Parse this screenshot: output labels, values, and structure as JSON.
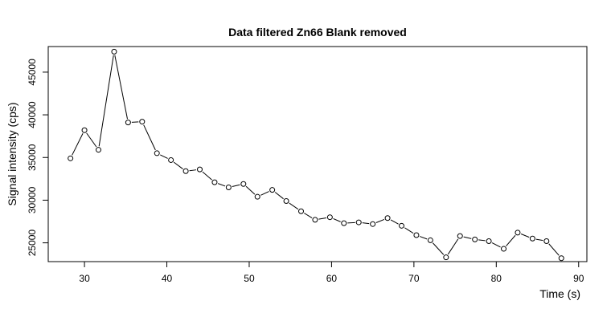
{
  "chart_data": {
    "type": "line",
    "title": "Data filtered Zn66 Blank removed",
    "xlabel": "Time (s)",
    "ylabel": "Signal intensity (cps)",
    "xlim": [
      25.6,
      91
    ],
    "ylim": [
      22800,
      48000
    ],
    "xticks": [
      30,
      40,
      50,
      60,
      70,
      80,
      90
    ],
    "yticks": [
      25000,
      30000,
      35000,
      40000,
      45000
    ],
    "grid": false,
    "marker": "open-circle",
    "color": "#000000",
    "series": [
      {
        "x": [
          28.3,
          30.0,
          31.7,
          33.6,
          35.3,
          37.0,
          38.8,
          40.5,
          42.3,
          44.0,
          45.8,
          47.5,
          49.3,
          51.0,
          52.8,
          54.5,
          56.3,
          58.0,
          59.8,
          61.5,
          63.3,
          65.0,
          66.8,
          68.5,
          70.3,
          72.0,
          73.9,
          75.6,
          77.4,
          79.1,
          80.9,
          82.6,
          84.4,
          86.1,
          87.9
        ],
        "y": [
          34900,
          38200,
          35900,
          47400,
          39100,
          39200,
          35500,
          34700,
          33400,
          33600,
          32100,
          31500,
          31900,
          30400,
          31200,
          29900,
          28700,
          27700,
          28000,
          27300,
          27400,
          27200,
          27900,
          27000,
          25900,
          25300,
          23300,
          25800,
          25400,
          25200,
          24300,
          26200,
          25500,
          25200,
          23200
        ]
      }
    ]
  }
}
